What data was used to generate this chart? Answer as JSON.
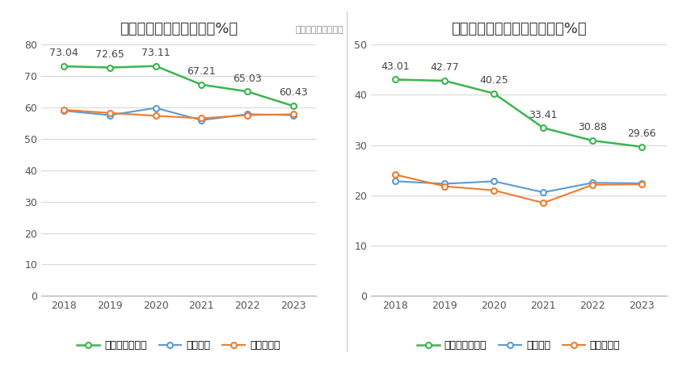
{
  "years": [
    2018,
    2019,
    2020,
    2021,
    2022,
    2023
  ],
  "chart1": {
    "title": "近年来资产负债率情况（%）",
    "company": [
      73.04,
      72.65,
      73.11,
      67.21,
      65.03,
      60.43
    ],
    "industry_avg": [
      58.9,
      57.5,
      59.8,
      55.9,
      57.8,
      57.5
    ],
    "industry_med": [
      59.2,
      58.2,
      57.3,
      56.5,
      57.5,
      57.8
    ],
    "ylim": [
      0,
      80
    ],
    "yticks": [
      0,
      10,
      20,
      30,
      40,
      50,
      60,
      70,
      80
    ]
  },
  "chart2": {
    "title": "近年来有息资产负债率情况（%）",
    "company": [
      43.01,
      42.77,
      40.25,
      33.41,
      30.88,
      29.66
    ],
    "industry_avg": [
      22.8,
      22.3,
      22.8,
      20.6,
      22.5,
      22.4
    ],
    "industry_med": [
      24.1,
      21.8,
      21.0,
      18.5,
      22.1,
      22.2
    ],
    "ylim": [
      0,
      50
    ],
    "yticks": [
      0,
      10,
      20,
      30,
      40,
      50
    ]
  },
  "source_text": "数据来源：恒生聚源",
  "legend1_labels": [
    "公司资产负债率",
    "行业均值",
    "行业中位数"
  ],
  "legend2_labels": [
    "有息资产负债率",
    "行业均值",
    "行业中位数"
  ],
  "green_color": "#3cb550",
  "blue_color": "#5b9bd5",
  "orange_color": "#ed7d31",
  "bg_color": "#ffffff",
  "grid_color": "#d8d8d8",
  "title_fontsize": 13,
  "label_fontsize": 9,
  "tick_fontsize": 9,
  "annot_fontsize": 9
}
